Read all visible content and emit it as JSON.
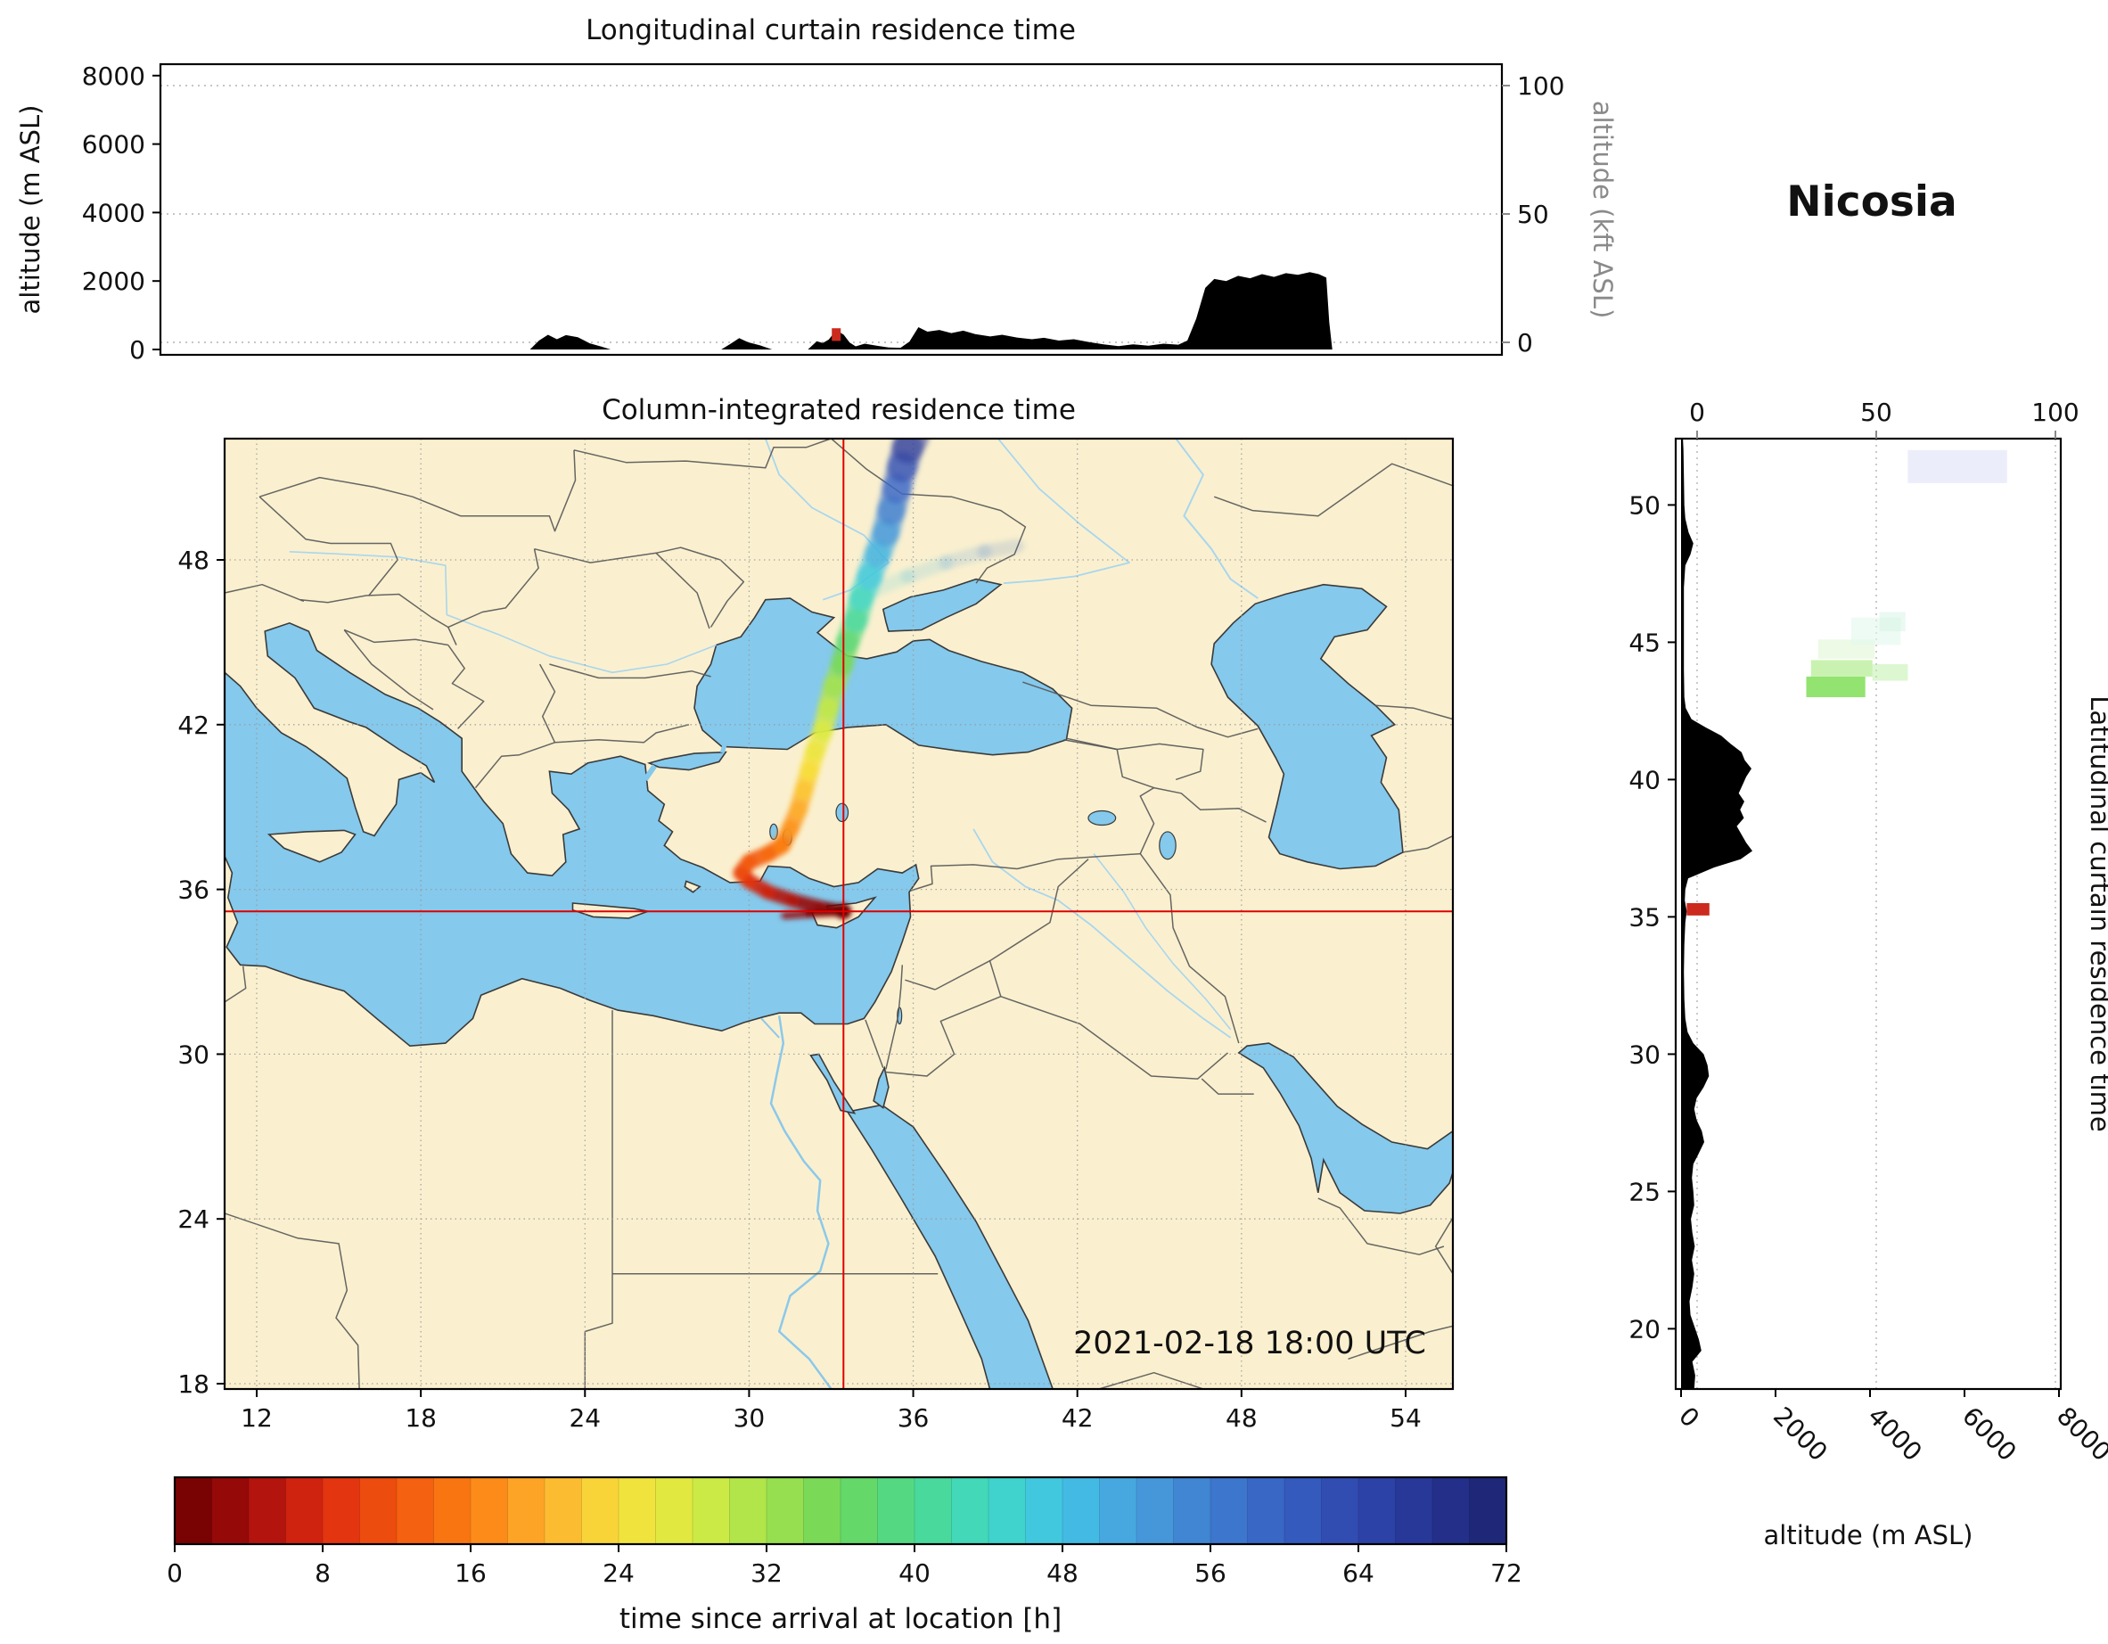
{
  "station": {
    "name": "Nicosia"
  },
  "map_overlay": {
    "datetime_label": "2021-02-18 18:00 UTC"
  },
  "colors": {
    "land": "#faf0cf",
    "water": "#85c9ec",
    "grid": "#b3b3b3",
    "crosshair": "#e00000",
    "silhouette": "#000000",
    "right_axis_gray": "#8a8a8a"
  },
  "chart_data": [
    {
      "id": "longitudinal_curtain",
      "type": "area",
      "title": "Longitudinal curtain residence time",
      "ylabel": "altitude (m ASL)",
      "ylabel_right": "altitude (kft ASL)",
      "xlim": [
        10.8,
        55.7
      ],
      "ylim": [
        0,
        8000
      ],
      "yticks": [
        0,
        2000,
        4000,
        6000,
        8000
      ],
      "right_ticks": [
        0,
        50,
        100
      ],
      "grid": "dotted-horizontal",
      "profile_lon_alt": [
        [
          10.83,
          0
        ],
        [
          23.2,
          0
        ],
        [
          23.5,
          260
        ],
        [
          23.8,
          430
        ],
        [
          24.1,
          300
        ],
        [
          24.4,
          420
        ],
        [
          24.8,
          360
        ],
        [
          25.2,
          180
        ],
        [
          25.6,
          80
        ],
        [
          25.9,
          0
        ],
        [
          29.6,
          0
        ],
        [
          29.9,
          160
        ],
        [
          30.2,
          330
        ],
        [
          30.5,
          210
        ],
        [
          30.9,
          120
        ],
        [
          31.3,
          0
        ],
        [
          32.5,
          0
        ],
        [
          32.8,
          240
        ],
        [
          33.0,
          190
        ],
        [
          33.2,
          290
        ],
        [
          33.45,
          570
        ],
        [
          33.7,
          430
        ],
        [
          33.9,
          200
        ],
        [
          34.1,
          90
        ],
        [
          34.4,
          170
        ],
        [
          34.8,
          110
        ],
        [
          35.2,
          60
        ],
        [
          35.6,
          50
        ],
        [
          35.9,
          230
        ],
        [
          36.2,
          650
        ],
        [
          36.5,
          520
        ],
        [
          36.9,
          570
        ],
        [
          37.3,
          480
        ],
        [
          37.7,
          550
        ],
        [
          38.1,
          450
        ],
        [
          38.6,
          380
        ],
        [
          39.0,
          430
        ],
        [
          39.5,
          350
        ],
        [
          40.0,
          300
        ],
        [
          40.4,
          340
        ],
        [
          40.9,
          260
        ],
        [
          41.4,
          300
        ],
        [
          41.9,
          220
        ],
        [
          42.4,
          150
        ],
        [
          42.9,
          100
        ],
        [
          43.4,
          150
        ],
        [
          43.9,
          110
        ],
        [
          44.4,
          170
        ],
        [
          44.9,
          140
        ],
        [
          45.2,
          260
        ],
        [
          45.5,
          900
        ],
        [
          45.8,
          1800
        ],
        [
          46.1,
          2060
        ],
        [
          46.5,
          2000
        ],
        [
          46.9,
          2150
        ],
        [
          47.3,
          2080
        ],
        [
          47.7,
          2200
        ],
        [
          48.1,
          2120
        ],
        [
          48.5,
          2230
        ],
        [
          48.9,
          2180
        ],
        [
          49.3,
          2260
        ],
        [
          49.6,
          2200
        ],
        [
          49.85,
          2100
        ],
        [
          49.95,
          800
        ],
        [
          50.05,
          0
        ],
        [
          55.7,
          0
        ]
      ],
      "marker": {
        "lon": 33.45,
        "alt_range": [
          250,
          620
        ],
        "color": "#cc2a1e"
      }
    },
    {
      "id": "map",
      "type": "map-trajectory",
      "title": "Column-integrated residence time",
      "xticks": [
        12,
        18,
        24,
        30,
        36,
        42,
        48,
        54
      ],
      "yticks": [
        18,
        24,
        30,
        36,
        42,
        48
      ],
      "xlim": [
        10.8,
        55.7
      ],
      "ylim": [
        17.8,
        52.4
      ],
      "crosshair": {
        "lon": 33.45,
        "lat": 35.2
      },
      "trajectory_lon_lat_hr": [
        [
          33.45,
          35.2,
          0
        ],
        [
          32.6,
          35.35,
          2
        ],
        [
          31.6,
          35.6,
          4
        ],
        [
          30.7,
          35.9,
          6
        ],
        [
          30.0,
          36.3,
          8
        ],
        [
          29.7,
          36.6,
          10
        ],
        [
          30.0,
          37.0,
          12
        ],
        [
          30.7,
          37.3,
          13
        ],
        [
          31.2,
          37.6,
          15
        ],
        [
          31.5,
          38.2,
          17
        ],
        [
          31.8,
          38.9,
          19
        ],
        [
          32.0,
          39.6,
          21
        ],
        [
          32.2,
          40.3,
          23
        ],
        [
          32.4,
          41.0,
          25
        ],
        [
          32.7,
          41.8,
          27
        ],
        [
          32.9,
          42.6,
          29
        ],
        [
          33.1,
          43.4,
          31
        ],
        [
          33.4,
          44.2,
          34
        ],
        [
          33.6,
          45.0,
          37
        ],
        [
          33.9,
          45.8,
          40
        ],
        [
          34.1,
          46.6,
          43
        ],
        [
          34.4,
          47.4,
          46
        ],
        [
          34.7,
          48.2,
          49
        ],
        [
          35.0,
          49.0,
          52
        ],
        [
          35.2,
          49.8,
          55
        ],
        [
          35.4,
          50.6,
          58
        ],
        [
          35.6,
          51.4,
          62
        ],
        [
          35.8,
          52.1,
          66
        ],
        [
          36.0,
          52.5,
          69
        ]
      ],
      "branch_lon_lat_hr": [
        [
          34.6,
          46.9,
          44
        ],
        [
          35.8,
          47.4,
          48
        ],
        [
          37.2,
          47.9,
          52
        ],
        [
          38.6,
          48.3,
          56
        ],
        [
          39.8,
          48.5,
          60
        ]
      ],
      "tail_lon_lat_hr": [
        [
          31.3,
          35.05,
          4
        ],
        [
          32.2,
          35.1,
          2
        ],
        [
          33.1,
          35.15,
          1
        ]
      ]
    },
    {
      "id": "latitudinal_curtain",
      "type": "area",
      "side_label": "Latitudinal curtain residence time",
      "xlabel": "altitude (m ASL)",
      "xticks": [
        0,
        2000,
        4000,
        6000,
        8000
      ],
      "top_ticks": [
        0,
        50,
        100
      ],
      "yticks": [
        20,
        25,
        30,
        35,
        40,
        45,
        50
      ],
      "xlim": [
        0,
        8000
      ],
      "ylim": [
        17.8,
        52.4
      ],
      "grid": "dotted-vertical",
      "profile_lat_alt": [
        [
          17.81,
          280
        ],
        [
          18.3,
          300
        ],
        [
          18.8,
          240
        ],
        [
          19.2,
          430
        ],
        [
          19.6,
          380
        ],
        [
          20.0,
          300
        ],
        [
          20.5,
          200
        ],
        [
          21.0,
          180
        ],
        [
          21.5,
          240
        ],
        [
          22.0,
          280
        ],
        [
          22.5,
          230
        ],
        [
          23.0,
          290
        ],
        [
          23.5,
          240
        ],
        [
          24.0,
          210
        ],
        [
          24.5,
          280
        ],
        [
          25.0,
          260
        ],
        [
          25.5,
          230
        ],
        [
          26.0,
          260
        ],
        [
          26.4,
          380
        ],
        [
          26.8,
          490
        ],
        [
          27.2,
          440
        ],
        [
          27.6,
          330
        ],
        [
          28.0,
          280
        ],
        [
          28.4,
          330
        ],
        [
          28.8,
          480
        ],
        [
          29.2,
          590
        ],
        [
          29.6,
          560
        ],
        [
          30.0,
          480
        ],
        [
          30.4,
          260
        ],
        [
          30.8,
          140
        ],
        [
          31.3,
          90
        ],
        [
          32.0,
          70
        ],
        [
          33.0,
          60
        ],
        [
          34.0,
          70
        ],
        [
          34.8,
          90
        ],
        [
          35.2,
          120
        ],
        [
          35.6,
          80
        ],
        [
          36.0,
          90
        ],
        [
          36.4,
          150
        ],
        [
          36.8,
          700
        ],
        [
          37.1,
          1260
        ],
        [
          37.4,
          1510
        ],
        [
          37.7,
          1380
        ],
        [
          38.0,
          1280
        ],
        [
          38.3,
          1180
        ],
        [
          38.6,
          1330
        ],
        [
          38.9,
          1250
        ],
        [
          39.2,
          1340
        ],
        [
          39.5,
          1220
        ],
        [
          39.8,
          1300
        ],
        [
          40.1,
          1380
        ],
        [
          40.4,
          1490
        ],
        [
          40.7,
          1350
        ],
        [
          41.0,
          1280
        ],
        [
          41.3,
          1050
        ],
        [
          41.6,
          850
        ],
        [
          41.9,
          520
        ],
        [
          42.2,
          220
        ],
        [
          42.6,
          100
        ],
        [
          43.0,
          70
        ],
        [
          44.0,
          60
        ],
        [
          45.0,
          60
        ],
        [
          46.0,
          60
        ],
        [
          47.0,
          60
        ],
        [
          47.8,
          90
        ],
        [
          48.2,
          200
        ],
        [
          48.6,
          260
        ],
        [
          49.0,
          160
        ],
        [
          49.5,
          90
        ],
        [
          50.0,
          70
        ],
        [
          51.0,
          60
        ],
        [
          52.0,
          50
        ],
        [
          52.42,
          40
        ]
      ],
      "marker": {
        "lat_range": [
          35.05,
          35.5
        ],
        "alt_range": [
          120,
          600
        ],
        "color": "#cc2a1e"
      },
      "patches": [
        {
          "la": [
            43.0,
            43.75
          ],
          "al": [
            2650,
            3900
          ],
          "c": "#86e060",
          "o": 0.9
        },
        {
          "la": [
            43.75,
            44.35
          ],
          "al": [
            2750,
            4050
          ],
          "c": "#aceb85",
          "o": 0.65
        },
        {
          "la": [
            43.6,
            44.2
          ],
          "al": [
            4050,
            4800
          ],
          "c": "#b9efa3",
          "o": 0.5
        },
        {
          "la": [
            44.4,
            45.1
          ],
          "al": [
            2900,
            4100
          ],
          "c": "#d8f5c8",
          "o": 0.45
        },
        {
          "la": [
            44.9,
            45.9
          ],
          "al": [
            3600,
            4650
          ],
          "c": "#e3f8ef",
          "o": 0.6
        },
        {
          "la": [
            45.4,
            46.1
          ],
          "al": [
            4200,
            4750
          ],
          "c": "#d0f2e2",
          "o": 0.45
        },
        {
          "la": [
            50.8,
            52.0
          ],
          "al": [
            4800,
            6900
          ],
          "c": "#e0e4f7",
          "o": 0.65
        }
      ]
    },
    {
      "id": "colorbar",
      "type": "colorbar",
      "label": "time since arrival at location [h]",
      "ticks": [
        0,
        8,
        16,
        24,
        32,
        40,
        48,
        56,
        64,
        72
      ],
      "range": [
        0,
        72
      ],
      "stops": [
        [
          0,
          "#6a0000"
        ],
        [
          4,
          "#a50c0c"
        ],
        [
          8,
          "#dd2a10"
        ],
        [
          12,
          "#f2570f"
        ],
        [
          16,
          "#fb7f12"
        ],
        [
          20,
          "#fdb02d"
        ],
        [
          24,
          "#f8e03b"
        ],
        [
          28,
          "#d9ec42"
        ],
        [
          32,
          "#a4e24c"
        ],
        [
          36,
          "#6cd75b"
        ],
        [
          40,
          "#4cd98f"
        ],
        [
          44,
          "#3fd8c5"
        ],
        [
          48,
          "#41c3e6"
        ],
        [
          52,
          "#489fdd"
        ],
        [
          56,
          "#3f7dd0"
        ],
        [
          60,
          "#3760c2"
        ],
        [
          64,
          "#2f47ad"
        ],
        [
          68,
          "#263391"
        ],
        [
          72,
          "#1c2470"
        ]
      ]
    }
  ]
}
